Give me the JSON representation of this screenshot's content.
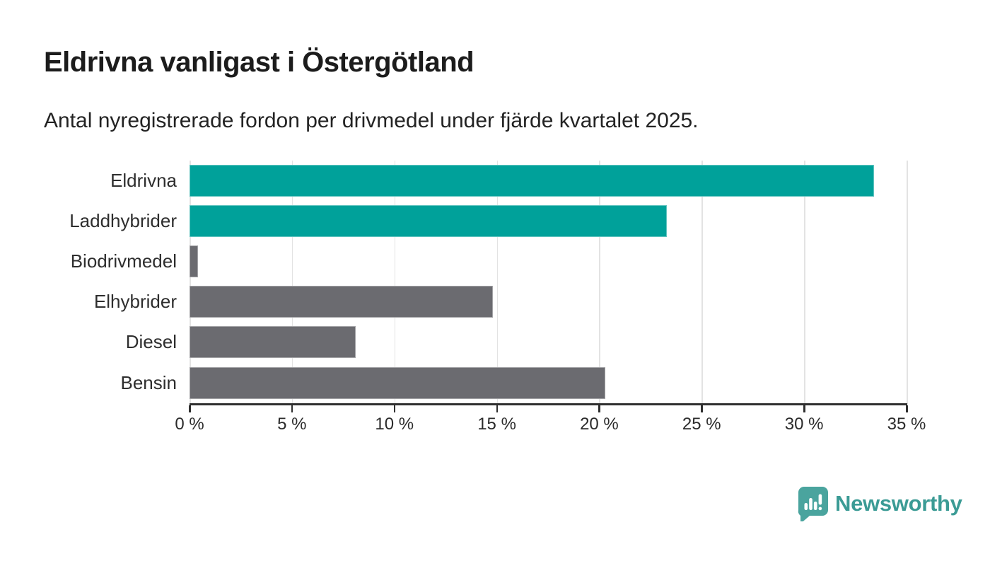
{
  "title": "Eldrivna vanligast i Östergötland",
  "subtitle": "Antal nyregistrerade fordon per drivmedel under fjärde kvartalet 2025.",
  "chart_data": {
    "type": "bar",
    "orientation": "horizontal",
    "title": "Eldrivna vanligast i Östergötland",
    "subtitle": "Antal nyregistrerade fordon per drivmedel under fjärde kvartalet 2025.",
    "categories": [
      "Eldrivna",
      "Laddhybrider",
      "Biodrivmedel",
      "Elhybrider",
      "Diesel",
      "Bensin"
    ],
    "values": [
      33.4,
      23.3,
      0.4,
      14.8,
      8.1,
      20.3
    ],
    "unit": "%",
    "bar_colors": [
      "#00a19a",
      "#00a19a",
      "#6b6b70",
      "#6b6b70",
      "#6b6b70",
      "#6b6b70"
    ],
    "highlight_color": "#00a19a",
    "default_bar_color": "#6b6b70",
    "xlim": [
      0,
      35
    ],
    "x_ticks": [
      0,
      5,
      10,
      15,
      20,
      25,
      30,
      35
    ],
    "x_tick_labels": [
      "0 %",
      "5 %",
      "10 %",
      "15 %",
      "20 %",
      "25 %",
      "30 %",
      "35 %"
    ],
    "grid": true,
    "gridline_color": "#e3e3e3",
    "axis_color": "#2f2f2f",
    "legend": "none"
  },
  "footer": {
    "brand": "Newsworthy",
    "logo_icon": "newsworthy-speech-bubble-bar-chart-icon",
    "logo_text_color": "#3b9b95",
    "logo_icon_color": "#4aa49e"
  }
}
